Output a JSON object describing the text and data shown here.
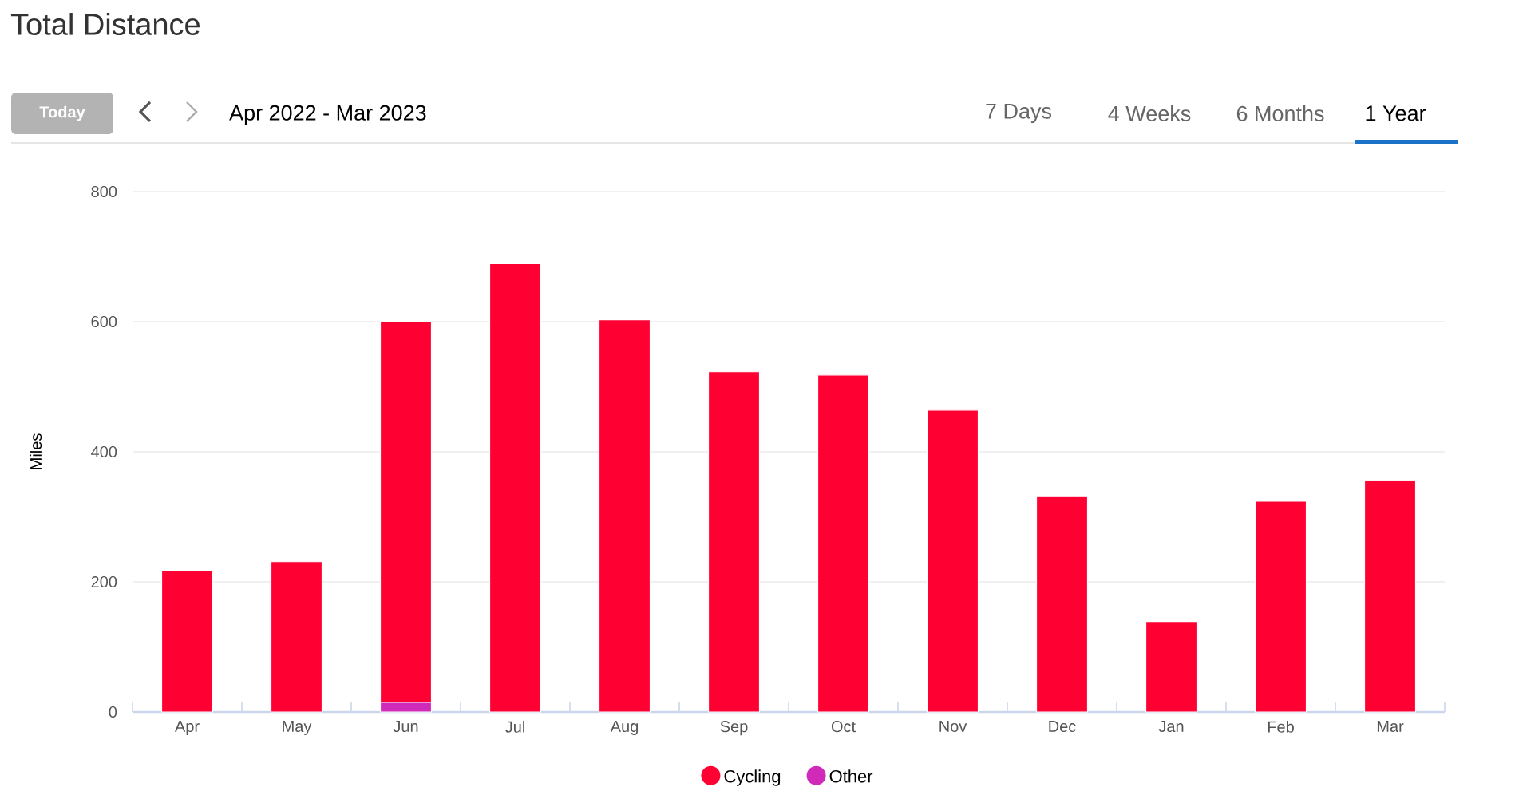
{
  "chart_data": {
    "type": "bar",
    "title": "Total Distance",
    "subtitle": "Apr 2022 - Mar 2023",
    "ylabel": "Miles",
    "annotations": [
      "Today",
      "7 Days",
      "4 Weeks",
      "6 Months",
      "1 Year"
    ],
    "categories": [
      "Apr",
      "May",
      "Jun",
      "Jul",
      "Aug",
      "Sep",
      "Oct",
      "Nov",
      "Dec",
      "Jan",
      "Feb",
      "Mar"
    ],
    "stacked": true,
    "series": [
      {
        "name": "Other",
        "color": "#d02ab8",
        "values": [
          0,
          0,
          15,
          0,
          0,
          0,
          0,
          0,
          0,
          0,
          0,
          0
        ]
      },
      {
        "name": "Cycling",
        "color": "#ff0033",
        "values": [
          218,
          231,
          585,
          689,
          603,
          523,
          518,
          464,
          331,
          139,
          324,
          356
        ]
      }
    ],
    "ylim": [
      0,
      800
    ],
    "yticks": [
      0,
      200,
      400,
      600,
      800
    ],
    "grid": "y",
    "legend": "bottom"
  }
}
